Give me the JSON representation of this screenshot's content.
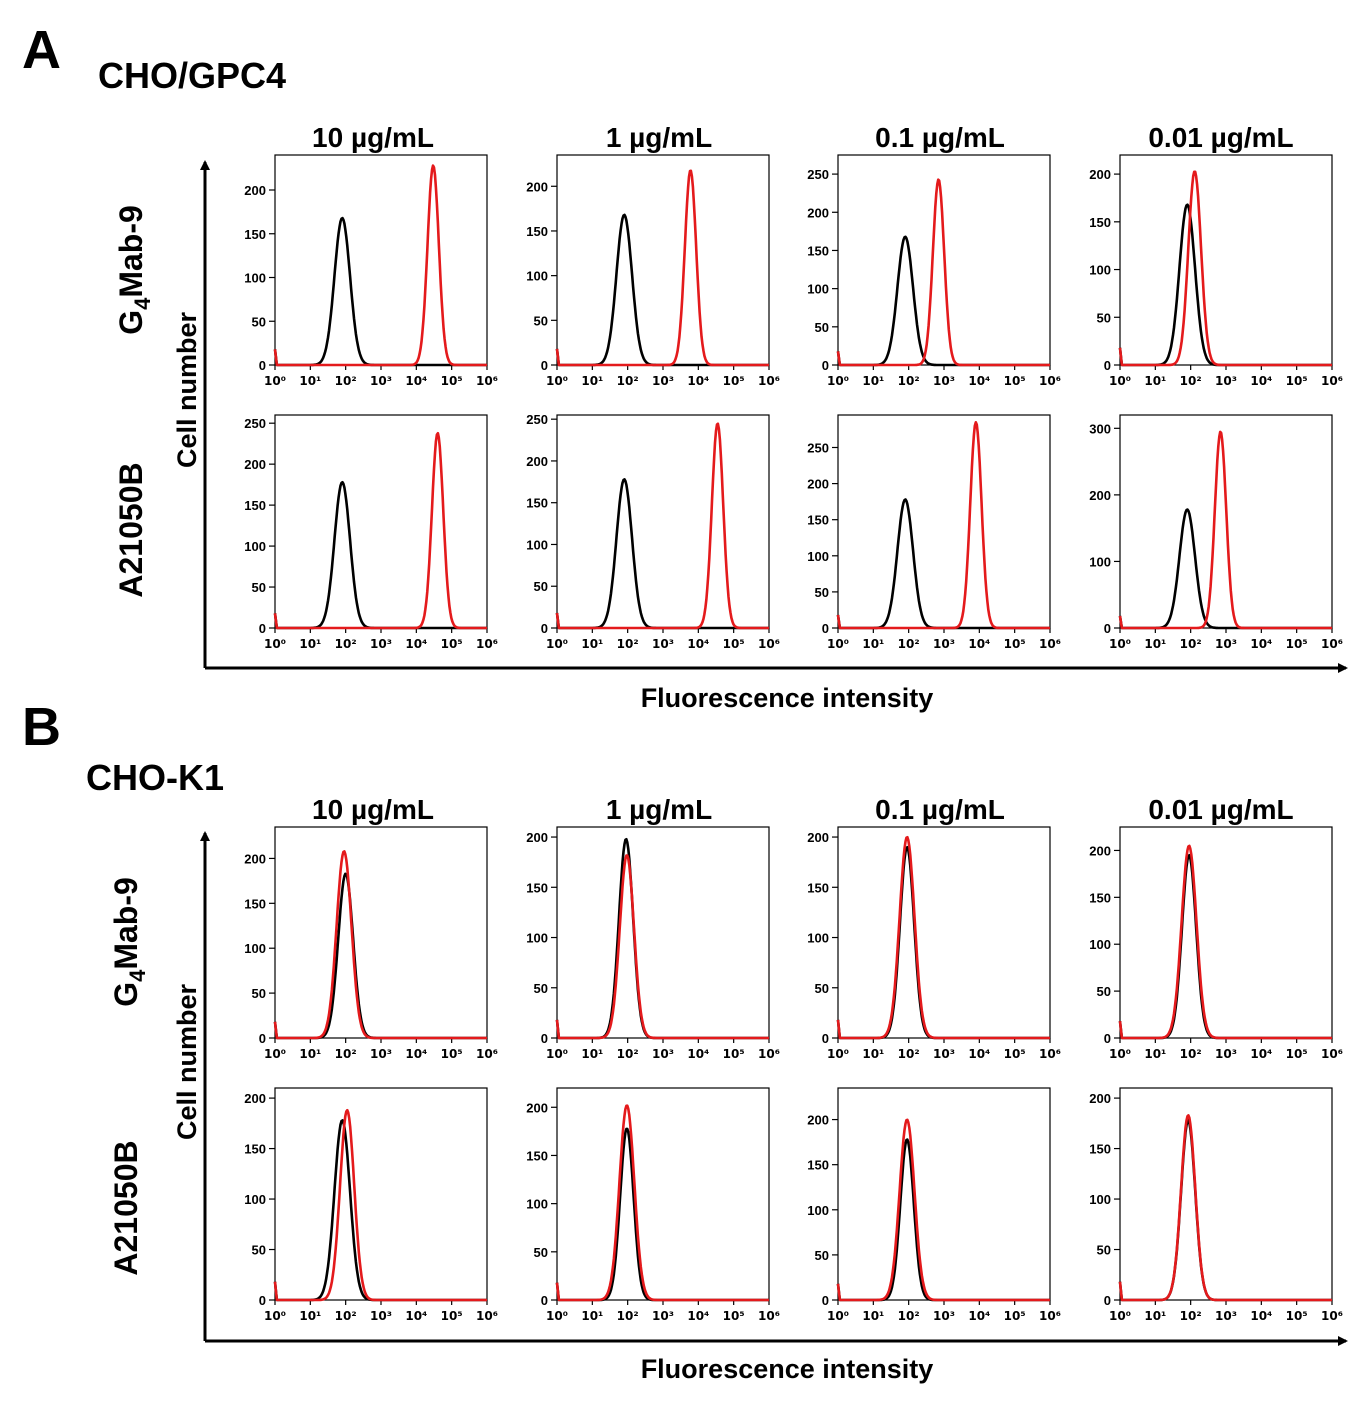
{
  "panels": [
    {
      "letter": "A",
      "cell_line": "CHO/GPC4",
      "y_axis_label": "Cell number",
      "x_axis_label": "Fluorescence intensity",
      "concentrations": [
        "10 µg/mL",
        "1 µg/mL",
        "0.1 µg/mL",
        "0.01 µg/mL"
      ],
      "rows": [
        {
          "antibody": "G4Mab-9",
          "antibody_display": [
            "G",
            "4",
            "Mab-9"
          ]
        },
        {
          "antibody": "A21050B",
          "antibody_display": [
            "A21050B"
          ]
        }
      ]
    },
    {
      "letter": "B",
      "cell_line": "CHO-K1",
      "y_axis_label": "Cell number",
      "x_axis_label": "Fluorescence intensity",
      "concentrations": [
        "10 µg/mL",
        "1 µg/mL",
        "0.1 µg/mL",
        "0.01 µg/mL"
      ],
      "rows": [
        {
          "antibody": "G4Mab-9",
          "antibody_display": [
            "G",
            "4",
            "Mab-9"
          ]
        },
        {
          "antibody": "A21050B",
          "antibody_display": [
            "A21050B"
          ]
        }
      ]
    }
  ],
  "colors": {
    "control": "#000000",
    "antibody": "#e41a1c"
  },
  "chart_data": [
    {
      "type": "line",
      "panel": "A",
      "antibody": "G4Mab-9",
      "concentration": "10 µg/mL",
      "x_scale": "log",
      "xlim": [
        1,
        1000000
      ],
      "ylim": [
        0,
        240
      ],
      "yticks": [
        0,
        50,
        100,
        150,
        200
      ],
      "x_ticks": [
        "10⁰",
        "10¹",
        "10²",
        "10³",
        "10⁴",
        "10⁵",
        "10⁶"
      ],
      "series": [
        {
          "color": "black",
          "peaks": [
            {
              "x": 80,
              "height": 168,
              "width_decades": 0.22
            }
          ]
        },
        {
          "color": "red",
          "peaks": [
            {
              "x": 30000,
              "height": 228,
              "width_decades": 0.16
            }
          ]
        }
      ]
    },
    {
      "type": "line",
      "panel": "A",
      "antibody": "G4Mab-9",
      "concentration": "1 µg/mL",
      "x_scale": "log",
      "xlim": [
        1,
        1000000
      ],
      "ylim": [
        0,
        235
      ],
      "yticks": [
        0,
        50,
        100,
        150,
        200
      ],
      "x_ticks": [
        "10⁰",
        "10¹",
        "10²",
        "10³",
        "10⁴",
        "10⁵",
        "10⁶"
      ],
      "series": [
        {
          "color": "black",
          "peaks": [
            {
              "x": 80,
              "height": 168,
              "width_decades": 0.22
            }
          ]
        },
        {
          "color": "red",
          "peaks": [
            {
              "x": 6000,
              "height": 218,
              "width_decades": 0.16
            }
          ]
        }
      ]
    },
    {
      "type": "line",
      "panel": "A",
      "antibody": "G4Mab-9",
      "concentration": "0.1 µg/mL",
      "x_scale": "log",
      "xlim": [
        1,
        1000000
      ],
      "ylim": [
        0,
        275
      ],
      "yticks": [
        0,
        50,
        100,
        150,
        200,
        250
      ],
      "x_ticks": [
        "10⁰",
        "10¹",
        "10²",
        "10³",
        "10⁴",
        "10⁵",
        "10⁶"
      ],
      "series": [
        {
          "color": "black",
          "peaks": [
            {
              "x": 80,
              "height": 168,
              "width_decades": 0.22
            }
          ]
        },
        {
          "color": "red",
          "peaks": [
            {
              "x": 700,
              "height": 243,
              "width_decades": 0.16
            }
          ]
        }
      ]
    },
    {
      "type": "line",
      "panel": "A",
      "antibody": "G4Mab-9",
      "concentration": "0.01 µg/mL",
      "x_scale": "log",
      "xlim": [
        1,
        1000000
      ],
      "ylim": [
        0,
        220
      ],
      "yticks": [
        0,
        50,
        100,
        150,
        200
      ],
      "x_ticks": [
        "10⁰",
        "10¹",
        "10²",
        "10³",
        "10⁴",
        "10⁵",
        "10⁶"
      ],
      "series": [
        {
          "color": "black",
          "peaks": [
            {
              "x": 80,
              "height": 168,
              "width_decades": 0.22
            }
          ]
        },
        {
          "color": "red",
          "peaks": [
            {
              "x": 130,
              "height": 203,
              "width_decades": 0.18
            }
          ]
        }
      ]
    },
    {
      "type": "line",
      "panel": "A",
      "antibody": "A21050B",
      "concentration": "10 µg/mL",
      "x_scale": "log",
      "xlim": [
        1,
        1000000
      ],
      "ylim": [
        0,
        260
      ],
      "yticks": [
        0,
        50,
        100,
        150,
        200,
        250
      ],
      "x_ticks": [
        "10⁰",
        "10¹",
        "10²",
        "10³",
        "10⁴",
        "10⁵",
        "10⁶"
      ],
      "series": [
        {
          "color": "black",
          "peaks": [
            {
              "x": 80,
              "height": 178,
              "width_decades": 0.22
            }
          ]
        },
        {
          "color": "red",
          "peaks": [
            {
              "x": 40000,
              "height": 238,
              "width_decades": 0.16
            }
          ]
        }
      ]
    },
    {
      "type": "line",
      "panel": "A",
      "antibody": "A21050B",
      "concentration": "1 µg/mL",
      "x_scale": "log",
      "xlim": [
        1,
        1000000
      ],
      "ylim": [
        0,
        255
      ],
      "yticks": [
        0,
        50,
        100,
        150,
        200,
        250
      ],
      "x_ticks": [
        "10⁰",
        "10¹",
        "10²",
        "10³",
        "10⁴",
        "10⁵",
        "10⁶"
      ],
      "series": [
        {
          "color": "black",
          "peaks": [
            {
              "x": 80,
              "height": 178,
              "width_decades": 0.22
            }
          ]
        },
        {
          "color": "red",
          "peaks": [
            {
              "x": 35000,
              "height": 245,
              "width_decades": 0.16
            }
          ]
        }
      ]
    },
    {
      "type": "line",
      "panel": "A",
      "antibody": "A21050B",
      "concentration": "0.1 µg/mL",
      "x_scale": "log",
      "xlim": [
        1,
        1000000
      ],
      "ylim": [
        0,
        295
      ],
      "yticks": [
        0,
        50,
        100,
        150,
        200,
        250
      ],
      "x_ticks": [
        "10⁰",
        "10¹",
        "10²",
        "10³",
        "10⁴",
        "10⁵",
        "10⁶"
      ],
      "series": [
        {
          "color": "black",
          "peaks": [
            {
              "x": 80,
              "height": 178,
              "width_decades": 0.22
            }
          ]
        },
        {
          "color": "red",
          "peaks": [
            {
              "x": 8000,
              "height": 285,
              "width_decades": 0.16
            }
          ]
        }
      ]
    },
    {
      "type": "line",
      "panel": "A",
      "antibody": "A21050B",
      "concentration": "0.01 µg/mL",
      "x_scale": "log",
      "xlim": [
        1,
        1000000
      ],
      "ylim": [
        0,
        320
      ],
      "yticks": [
        0,
        100,
        200,
        300
      ],
      "x_ticks": [
        "10⁰",
        "10¹",
        "10²",
        "10³",
        "10⁴",
        "10⁵",
        "10⁶"
      ],
      "series": [
        {
          "color": "black",
          "peaks": [
            {
              "x": 80,
              "height": 178,
              "width_decades": 0.22
            }
          ]
        },
        {
          "color": "red",
          "peaks": [
            {
              "x": 700,
              "height": 295,
              "width_decades": 0.16
            }
          ]
        }
      ]
    },
    {
      "type": "line",
      "panel": "B",
      "antibody": "G4Mab-9",
      "concentration": "10 µg/mL",
      "x_scale": "log",
      "xlim": [
        1,
        1000000
      ],
      "ylim": [
        0,
        235
      ],
      "yticks": [
        0,
        50,
        100,
        150,
        200
      ],
      "x_ticks": [
        "10⁰",
        "10¹",
        "10²",
        "10³",
        "10⁴",
        "10⁵",
        "10⁶"
      ],
      "series": [
        {
          "color": "black",
          "peaks": [
            {
              "x": 100,
              "height": 183,
              "width_decades": 0.21
            }
          ]
        },
        {
          "color": "red",
          "peaks": [
            {
              "x": 90,
              "height": 208,
              "width_decades": 0.21
            }
          ]
        }
      ]
    },
    {
      "type": "line",
      "panel": "B",
      "antibody": "G4Mab-9",
      "concentration": "1 µg/mL",
      "x_scale": "log",
      "xlim": [
        1,
        1000000
      ],
      "ylim": [
        0,
        210
      ],
      "yticks": [
        0,
        50,
        100,
        150,
        200
      ],
      "x_ticks": [
        "10⁰",
        "10¹",
        "10²",
        "10³",
        "10⁴",
        "10⁵",
        "10⁶"
      ],
      "series": [
        {
          "color": "black",
          "peaks": [
            {
              "x": 90,
              "height": 198,
              "width_decades": 0.2
            }
          ]
        },
        {
          "color": "red",
          "peaks": [
            {
              "x": 95,
              "height": 182,
              "width_decades": 0.2
            }
          ]
        }
      ]
    },
    {
      "type": "line",
      "panel": "B",
      "antibody": "G4Mab-9",
      "concentration": "0.1 µg/mL",
      "x_scale": "log",
      "xlim": [
        1,
        1000000
      ],
      "ylim": [
        0,
        210
      ],
      "yticks": [
        0,
        50,
        100,
        150,
        200
      ],
      "x_ticks": [
        "10⁰",
        "10¹",
        "10²",
        "10³",
        "10⁴",
        "10⁵",
        "10⁶"
      ],
      "series": [
        {
          "color": "black",
          "peaks": [
            {
              "x": 90,
              "height": 190,
              "width_decades": 0.2
            }
          ]
        },
        {
          "color": "red",
          "peaks": [
            {
              "x": 90,
              "height": 200,
              "width_decades": 0.21
            }
          ]
        }
      ]
    },
    {
      "type": "line",
      "panel": "B",
      "antibody": "G4Mab-9",
      "concentration": "0.01 µg/mL",
      "x_scale": "log",
      "xlim": [
        1,
        1000000
      ],
      "ylim": [
        0,
        225
      ],
      "yticks": [
        0,
        50,
        100,
        150,
        200
      ],
      "x_ticks": [
        "10⁰",
        "10¹",
        "10²",
        "10³",
        "10⁴",
        "10⁵",
        "10⁶"
      ],
      "series": [
        {
          "color": "black",
          "peaks": [
            {
              "x": 90,
              "height": 195,
              "width_decades": 0.2
            }
          ]
        },
        {
          "color": "red",
          "peaks": [
            {
              "x": 90,
              "height": 205,
              "width_decades": 0.21
            }
          ]
        }
      ]
    },
    {
      "type": "line",
      "panel": "B",
      "antibody": "A21050B",
      "concentration": "10 µg/mL",
      "x_scale": "log",
      "xlim": [
        1,
        1000000
      ],
      "ylim": [
        0,
        210
      ],
      "yticks": [
        0,
        50,
        100,
        150,
        200
      ],
      "x_ticks": [
        "10⁰",
        "10¹",
        "10²",
        "10³",
        "10⁴",
        "10⁵",
        "10⁶"
      ],
      "series": [
        {
          "color": "black",
          "peaks": [
            {
              "x": 80,
              "height": 178,
              "width_decades": 0.22
            }
          ]
        },
        {
          "color": "red",
          "peaks": [
            {
              "x": 110,
              "height": 188,
              "width_decades": 0.2
            }
          ]
        }
      ]
    },
    {
      "type": "line",
      "panel": "B",
      "antibody": "A21050B",
      "concentration": "1 µg/mL",
      "x_scale": "log",
      "xlim": [
        1,
        1000000
      ],
      "ylim": [
        0,
        220
      ],
      "yticks": [
        0,
        50,
        100,
        150,
        200
      ],
      "x_ticks": [
        "10⁰",
        "10¹",
        "10²",
        "10³",
        "10⁴",
        "10⁵",
        "10⁶"
      ],
      "series": [
        {
          "color": "black",
          "peaks": [
            {
              "x": 95,
              "height": 178,
              "width_decades": 0.19
            }
          ]
        },
        {
          "color": "red",
          "peaks": [
            {
              "x": 95,
              "height": 202,
              "width_decades": 0.21
            }
          ]
        }
      ]
    },
    {
      "type": "line",
      "panel": "B",
      "antibody": "A21050B",
      "concentration": "0.1 µg/mL",
      "x_scale": "log",
      "xlim": [
        1,
        1000000
      ],
      "ylim": [
        0,
        235
      ],
      "yticks": [
        0,
        50,
        100,
        150,
        200
      ],
      "x_ticks": [
        "10⁰",
        "10¹",
        "10²",
        "10³",
        "10⁴",
        "10⁵",
        "10⁶"
      ],
      "series": [
        {
          "color": "black",
          "peaks": [
            {
              "x": 90,
              "height": 178,
              "width_decades": 0.19
            }
          ]
        },
        {
          "color": "red",
          "peaks": [
            {
              "x": 90,
              "height": 200,
              "width_decades": 0.21
            }
          ]
        }
      ]
    },
    {
      "type": "line",
      "panel": "B",
      "antibody": "A21050B",
      "concentration": "0.01 µg/mL",
      "x_scale": "log",
      "xlim": [
        1,
        1000000
      ],
      "ylim": [
        0,
        210
      ],
      "yticks": [
        0,
        50,
        100,
        150,
        200
      ],
      "x_ticks": [
        "10⁰",
        "10¹",
        "10²",
        "10³",
        "10⁴",
        "10⁵",
        "10⁶"
      ],
      "series": [
        {
          "color": "black",
          "peaks": [
            {
              "x": 85,
              "height": 178,
              "width_decades": 0.2
            }
          ]
        },
        {
          "color": "red",
          "peaks": [
            {
              "x": 85,
              "height": 183,
              "width_decades": 0.2
            }
          ]
        }
      ]
    }
  ]
}
